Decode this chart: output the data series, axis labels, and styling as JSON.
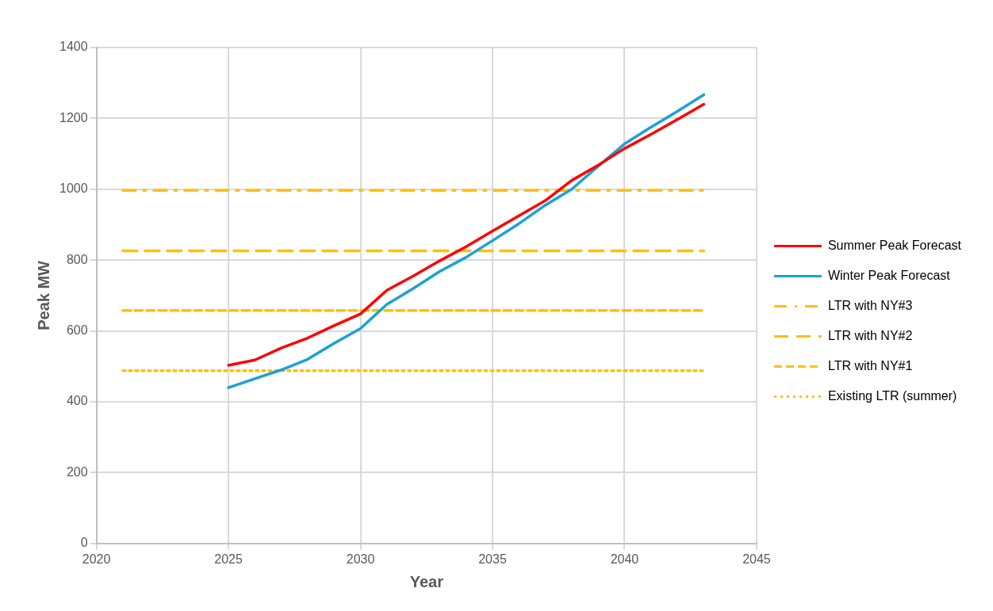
{
  "chart_data": {
    "type": "line",
    "xlabel": "Year",
    "ylabel": "Peak MW",
    "xlim": [
      2020,
      2045
    ],
    "xticks": [
      2020,
      2025,
      2030,
      2035,
      2040,
      2045
    ],
    "ylim": [
      0,
      1400
    ],
    "yticks": [
      0,
      200,
      400,
      600,
      800,
      1000,
      1200,
      1400
    ],
    "grid": true,
    "legend": "right",
    "marker": "none",
    "series": [
      {
        "name": "Summer Peak Forecast",
        "color": "#ff0000",
        "line_style": "solid",
        "x": [
          2025,
          2026,
          2027,
          2028,
          2029,
          2030,
          2031,
          2032,
          2033,
          2034,
          2035,
          2036,
          2037,
          2038,
          2039,
          2040,
          2041,
          2042,
          2043
        ],
        "values": [
          503,
          518,
          552,
          580,
          615,
          648,
          715,
          755,
          798,
          838,
          882,
          925,
          968,
          1025,
          1068,
          1115,
          1155,
          1197,
          1240
        ]
      },
      {
        "name": "Winter Peak Forecast",
        "color": "#1ba1d6",
        "line_style": "solid",
        "x": [
          2025,
          2026,
          2027,
          2028,
          2029,
          2030,
          2031,
          2032,
          2033,
          2034,
          2035,
          2036,
          2037,
          2038,
          2039,
          2040,
          2041,
          2042,
          2043
        ],
        "values": [
          440,
          465,
          490,
          520,
          565,
          607,
          675,
          720,
          768,
          808,
          855,
          903,
          955,
          1000,
          1065,
          1128,
          1175,
          1220,
          1267
        ]
      },
      {
        "name": "LTR with NY#3",
        "color": "#ffc000",
        "line_style": "dashdot",
        "x": [
          2021,
          2043
        ],
        "values": [
          997,
          997
        ]
      },
      {
        "name": "LTR with NY#2",
        "color": "#ffc000",
        "line_style": "longdash",
        "x": [
          2021,
          2043
        ],
        "values": [
          826,
          826
        ]
      },
      {
        "name": "LTR with NY#1",
        "color": "#ffc000",
        "line_style": "dashed",
        "x": [
          2021,
          2043
        ],
        "values": [
          658,
          658
        ]
      },
      {
        "name": "Existing LTR (summer)",
        "color": "#ffc000",
        "line_style": "dotted",
        "x": [
          2021,
          2043
        ],
        "values": [
          488,
          488
        ]
      }
    ]
  }
}
